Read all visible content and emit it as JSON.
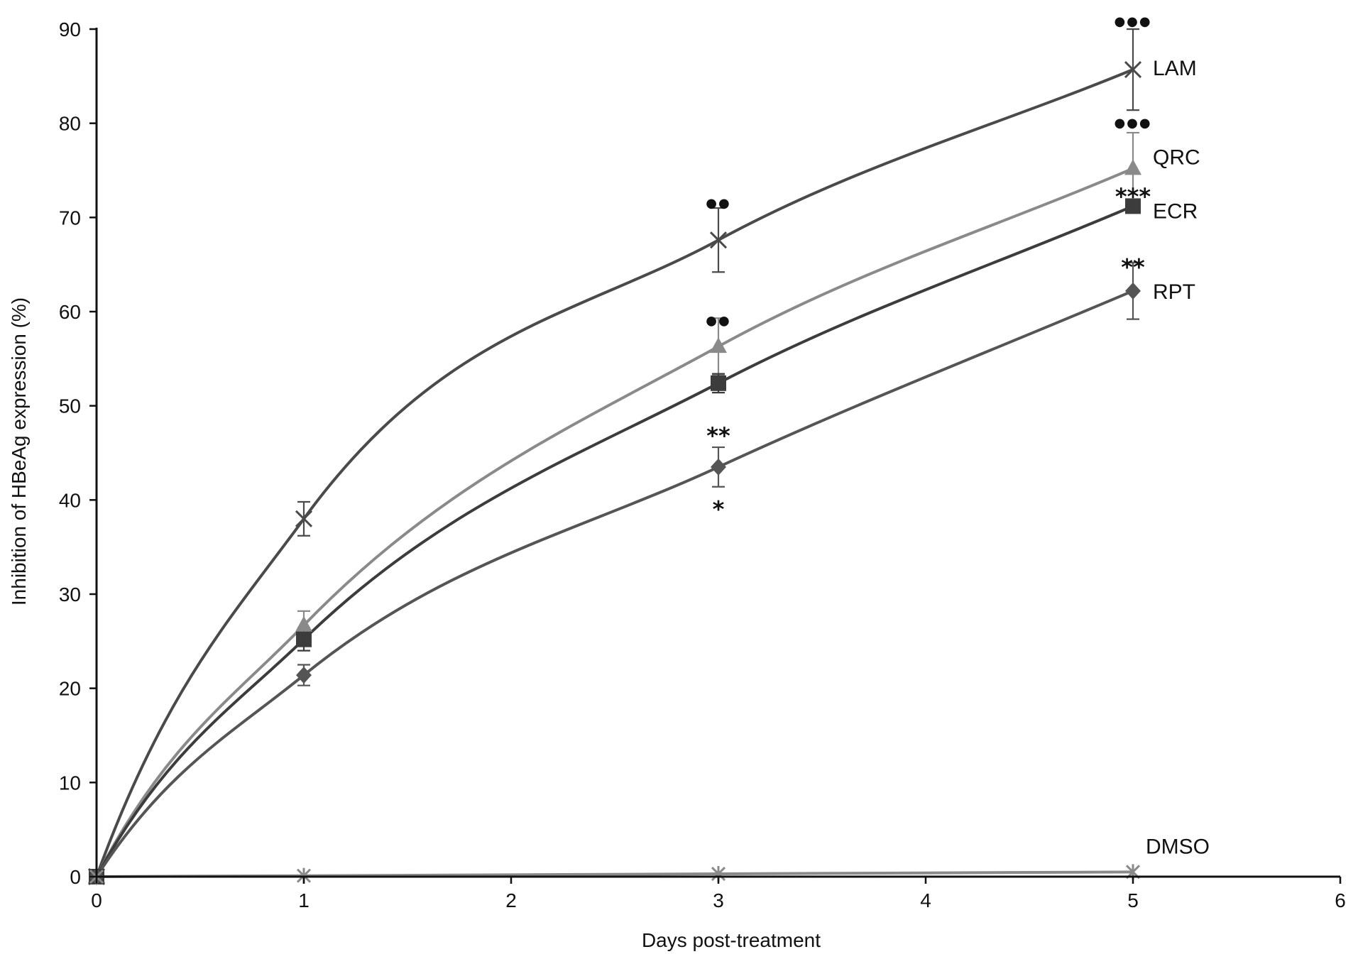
{
  "chart_data": {
    "type": "line",
    "xlabel": "Days post-treatment",
    "ylabel": "Inhibition of HBeAg expression (%)",
    "xlim": [
      0,
      6
    ],
    "ylim": [
      0,
      90
    ],
    "x_ticks": [
      "0",
      "1",
      "2",
      "3",
      "4",
      "5",
      "6"
    ],
    "y_ticks": [
      "0",
      "10",
      "20",
      "30",
      "40",
      "50",
      "60",
      "70",
      "80",
      "90"
    ],
    "x": [
      0,
      1,
      3,
      5
    ],
    "grid": false,
    "legend": "inline labels at right end of each series",
    "series": [
      {
        "name": "LAM",
        "values": [
          0,
          38.0,
          67.6,
          85.7
        ],
        "errors": [
          0,
          1.8,
          3.4,
          4.3
        ],
        "marker": "x",
        "color": "#4a4a4a"
      },
      {
        "name": "QRC",
        "values": [
          0,
          26.7,
          56.3,
          75.2
        ],
        "errors": [
          0,
          1.5,
          3.0,
          3.8
        ],
        "marker": "triangle",
        "color": "#8a8a8a"
      },
      {
        "name": "ECR",
        "values": [
          0,
          25.2,
          52.4,
          71.2
        ],
        "errors": [
          0,
          1.2,
          1.0,
          0.0
        ],
        "marker": "square",
        "color": "#3c3c3c"
      },
      {
        "name": "RPT",
        "values": [
          0,
          21.4,
          43.5,
          62.2
        ],
        "errors": [
          0,
          1.1,
          2.1,
          3.0
        ],
        "marker": "diamond",
        "color": "#555555"
      },
      {
        "name": "DMSO",
        "values": [
          0,
          0.1,
          0.3,
          0.5
        ],
        "errors": [
          0,
          0,
          0,
          0
        ],
        "marker": "asterisk",
        "color": "#8a8a8a"
      }
    ],
    "annotations": [
      {
        "text": "●●●",
        "x": 5,
        "y": 91.3
      },
      {
        "text": "●●●",
        "x": 5,
        "y": 80.5
      },
      {
        "text": "***",
        "x": 5,
        "y": 72.3
      },
      {
        "text": "**",
        "x": 5,
        "y": 64.8
      },
      {
        "text": "●●",
        "x": 3,
        "y": 72.0
      },
      {
        "text": "●●",
        "x": 3,
        "y": 59.5
      },
      {
        "text": "**",
        "x": 3,
        "y": 46.9
      },
      {
        "text": "*",
        "x": 3,
        "y": 39.1
      }
    ]
  }
}
